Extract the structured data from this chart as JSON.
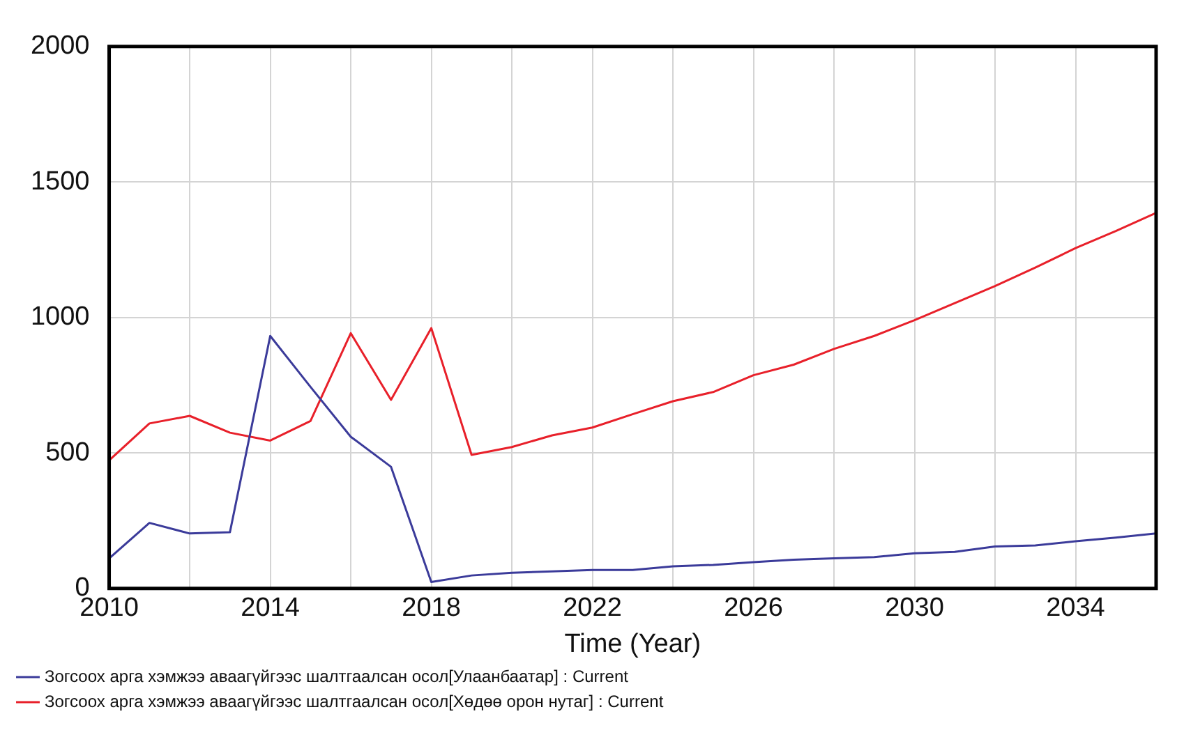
{
  "chart_data": {
    "type": "line",
    "xlabel": "Time (Year)",
    "x": [
      2010,
      2011,
      2012,
      2013,
      2014,
      2015,
      2016,
      2017,
      2018,
      2019,
      2020,
      2021,
      2022,
      2023,
      2024,
      2025,
      2026,
      2027,
      2028,
      2029,
      2030,
      2031,
      2032,
      2033,
      2034,
      2035,
      2036
    ],
    "series": [
      {
        "name": "Зогсоох арга хэмжээ аваагүйгээс шалтгаалсан осол[Улаанбаатар] : Current",
        "color": "#3b3b9a",
        "values": [
          111,
          242,
          203,
          208,
          932,
          744,
          560,
          449,
          24,
          48,
          58,
          63,
          68,
          68,
          82,
          87,
          97,
          106,
          111,
          116,
          130,
          135,
          155,
          159,
          174,
          188,
          203
        ]
      },
      {
        "name": "Зогсоох арга хэмжээ аваагүйгээс шалтгаалсан осол[Хөдөө орон нутаг] : Current",
        "color": "#e8202a",
        "values": [
          473,
          609,
          637,
          575,
          546,
          618,
          942,
          696,
          961,
          493,
          522,
          565,
          594,
          643,
          691,
          725,
          787,
          826,
          884,
          932,
          990,
          1053,
          1116,
          1184,
          1256,
          1319,
          1386
        ]
      }
    ],
    "xlim": [
      2010,
      2036
    ],
    "xticks": [
      2010,
      {
        "value": 2012,
        "label": null
      },
      2014,
      {
        "value": 2016,
        "label": null
      },
      2018,
      {
        "value": 2020,
        "label": null
      },
      2022,
      {
        "value": 2024,
        "label": null
      },
      2026,
      {
        "value": 2028,
        "label": null
      },
      2030,
      {
        "value": 2032,
        "label": null
      },
      2034
    ],
    "ylim": [
      0,
      2000
    ],
    "yticks": [
      0,
      500,
      1000,
      1500,
      2000
    ],
    "grid": true,
    "legend": "bottom",
    "marker": "none",
    "line_style": "solid"
  }
}
